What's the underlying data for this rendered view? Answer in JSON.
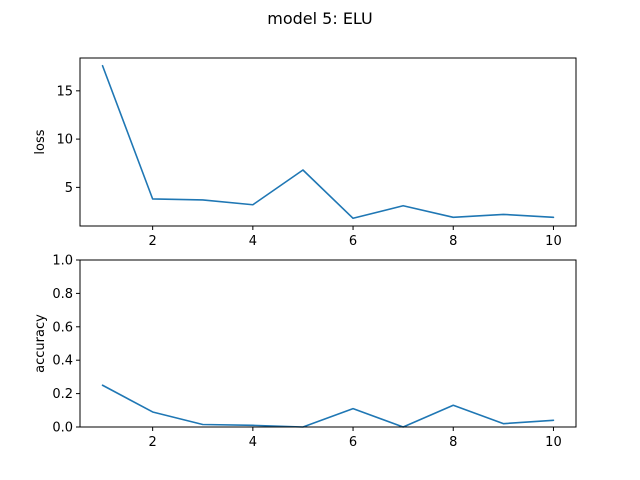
{
  "figure": {
    "title": "model 5: ELU"
  },
  "chart_data": [
    {
      "type": "line",
      "title": "",
      "xlabel": "",
      "ylabel": "loss",
      "xlim": [
        0.55,
        10.45
      ],
      "ylim": [
        1.0,
        18.4
      ],
      "xticks": [
        2,
        4,
        6,
        8,
        10
      ],
      "yticks": [
        5,
        10,
        15
      ],
      "grid": false,
      "color": "#1f77b4",
      "x": [
        1,
        2,
        3,
        4,
        5,
        6,
        7,
        8,
        9,
        10
      ],
      "values": [
        17.6,
        3.8,
        3.7,
        3.2,
        6.8,
        1.8,
        3.1,
        1.9,
        2.2,
        1.9
      ]
    },
    {
      "type": "line",
      "title": "",
      "xlabel": "",
      "ylabel": "accuracy",
      "xlim": [
        0.55,
        10.45
      ],
      "ylim": [
        0.0,
        1.0
      ],
      "xticks": [
        2,
        4,
        6,
        8,
        10
      ],
      "yticks": [
        0.0,
        0.2,
        0.4,
        0.6,
        0.8,
        1.0
      ],
      "grid": false,
      "color": "#1f77b4",
      "x": [
        1,
        2,
        3,
        4,
        5,
        6,
        7,
        8,
        9,
        10
      ],
      "values": [
        0.25,
        0.09,
        0.015,
        0.01,
        0.0,
        0.11,
        0.0,
        0.13,
        0.02,
        0.04
      ]
    }
  ]
}
